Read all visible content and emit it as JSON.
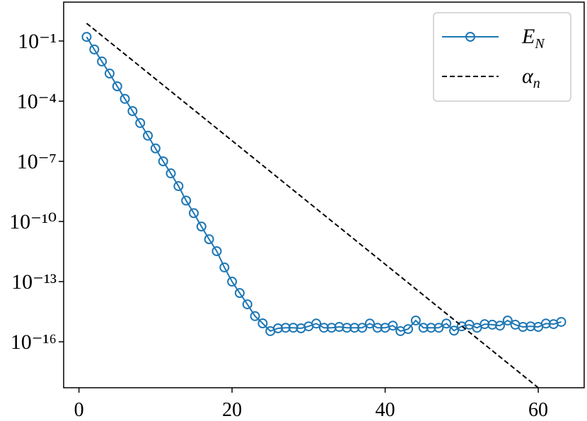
{
  "chart_data": {
    "type": "line",
    "xlim": [
      -2,
      66
    ],
    "xticks": [
      0,
      20,
      40,
      60
    ],
    "ylim": [
      8.7,
      5.1e-19
    ],
    "log_y": true,
    "yticks": [
      {
        "value": 0.1,
        "label": "10⁻¹"
      },
      {
        "value": 0.0001,
        "label": "10⁻⁴"
      },
      {
        "value": 1e-07,
        "label": "10⁻⁷"
      },
      {
        "value": 1e-10,
        "label": "10⁻¹⁰"
      },
      {
        "value": 1e-13,
        "label": "10⁻¹³"
      },
      {
        "value": 1e-16,
        "label": "10⁻¹⁶"
      }
    ],
    "legend": "upper right",
    "series": [
      {
        "name": "E_N",
        "color": "#1f77b4",
        "marker": "circle",
        "linestyle": "solid",
        "x": [
          1,
          2,
          3,
          4,
          5,
          6,
          7,
          8,
          9,
          10,
          11,
          12,
          13,
          14,
          15,
          16,
          17,
          18,
          19,
          20,
          21,
          22,
          23,
          24,
          25,
          26,
          27,
          28,
          29,
          30,
          31,
          32,
          33,
          34,
          35,
          36,
          37,
          38,
          39,
          40,
          41,
          42,
          43,
          44,
          45,
          46,
          47,
          48,
          49,
          50,
          51,
          52,
          53,
          54,
          55,
          56,
          57,
          58,
          59,
          60,
          61,
          62,
          63
        ],
        "values": [
          0.16,
          0.038,
          0.0095,
          0.0024,
          0.00055,
          0.00013,
          3.2e-05,
          8.1e-06,
          1.9e-06,
          4.4e-07,
          1e-07,
          2.5e-08,
          5.8e-09,
          1.1e-09,
          2.6e-10,
          5.6e-11,
          1.3e-11,
          3.3e-12,
          5.1e-13,
          1e-13,
          2.7e-14,
          7.4e-15,
          1.9e-15,
          8.3e-16,
          3.4e-16,
          4.7e-16,
          5e-16,
          5e-16,
          4.7e-16,
          5.9e-16,
          8.1e-16,
          5e-16,
          5e-16,
          5.5e-16,
          5e-16,
          5e-16,
          5e-16,
          8.1e-16,
          5e-16,
          5e-16,
          6.4e-16,
          3.4e-16,
          4.3e-16,
          1.15e-15,
          5e-16,
          5e-16,
          5e-16,
          8.1e-16,
          3.6e-16,
          5.9e-16,
          7.1e-16,
          5e-16,
          7.6e-16,
          7.1e-16,
          6.4e-16,
          1.15e-15,
          7.1e-16,
          5.5e-16,
          5.9e-16,
          5.5e-16,
          8.1e-16,
          7.6e-16,
          9.8e-16
        ]
      },
      {
        "name": "α_n",
        "color": "#000000",
        "marker": "none",
        "linestyle": "dashed",
        "x": [
          1,
          60
        ],
        "values": [
          0.76,
          5.1e-19
        ]
      }
    ]
  }
}
